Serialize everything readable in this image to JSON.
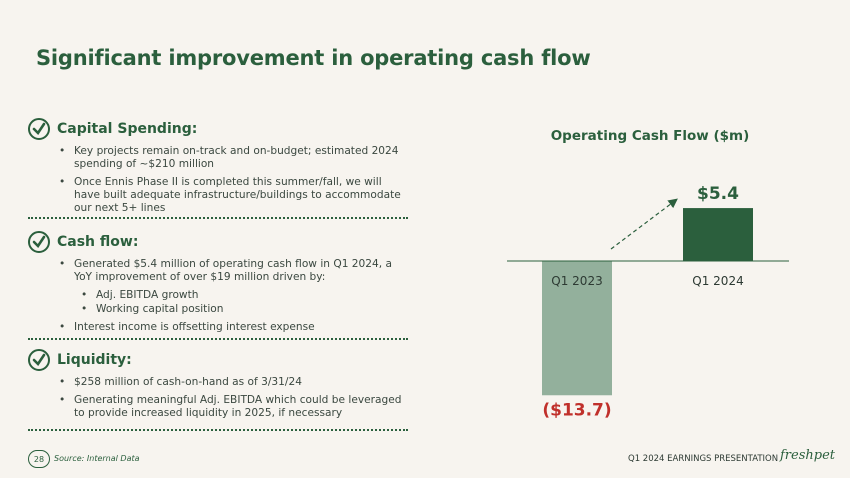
{
  "slide": {
    "title": "Significant improvement in operating cash flow"
  },
  "sections": [
    {
      "title": "Capital Spending:",
      "bullets": [
        "Key projects remain on-track and on-budget; estimated 2024 spending of ~$210 million",
        "Once Ennis Phase II is completed this summer/fall, we will have built adequate infrastructure/buildings to accommodate our next 5+ lines"
      ]
    },
    {
      "title": "Cash flow:",
      "bullets": [
        "Generated $5.4 million of operating cash flow in Q1 2024, a YoY improvement of over $19 million driven by:",
        "Interest income is offsetting interest expense"
      ],
      "sub_bullets": [
        "Adj. EBITDA growth",
        "Working capital position"
      ]
    },
    {
      "title": "Liquidity:",
      "bullets": [
        "$258 million of cash-on-hand as of 3/31/24",
        "Generating meaningful Adj. EBITDA which could be leveraged to provide increased liquidity in 2025, if necessary"
      ]
    }
  ],
  "chart_data": {
    "type": "bar",
    "title": "Operating Cash Flow ($m)",
    "categories": [
      "Q1 2023",
      "Q1 2024"
    ],
    "values": [
      -13.7,
      5.4
    ],
    "value_labels": [
      "($13.7)",
      "$5.4"
    ],
    "colors": [
      "#93b09c",
      "#2b5f3d"
    ],
    "value_label_colors": [
      "#c0302b",
      "#2b5f3d"
    ],
    "trend_arrow": "dashed arrow from Q1 2023 toward Q1 2024"
  },
  "footer": {
    "page_number": "28",
    "source": "Source: Internal Data",
    "presentation": "Q1 2024 EARNINGS PRESENTATION",
    "logo_text": "freshpet"
  }
}
